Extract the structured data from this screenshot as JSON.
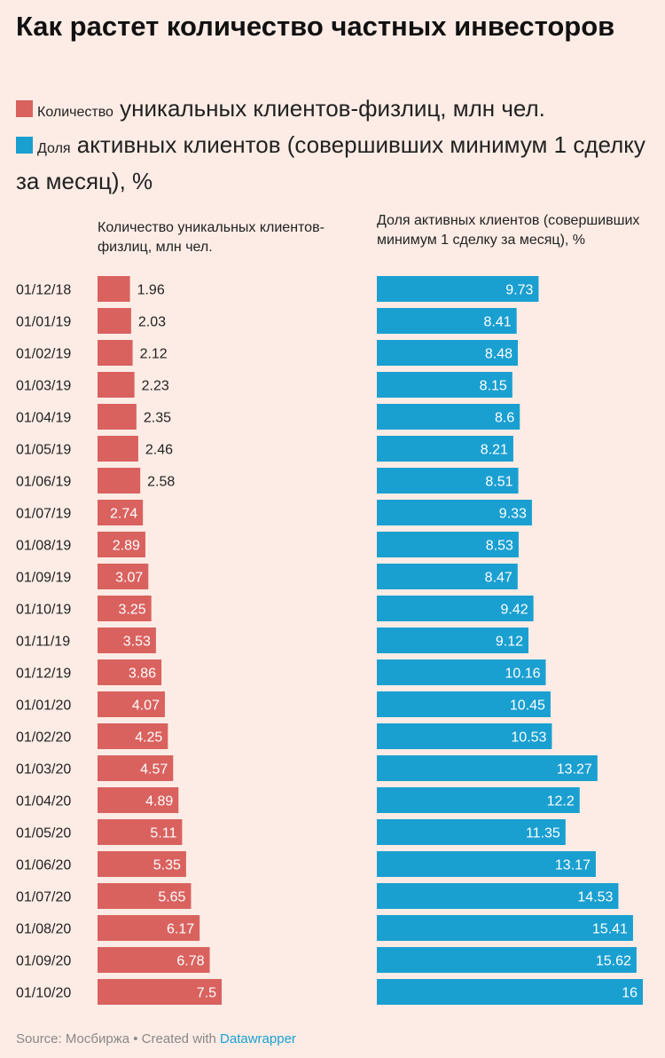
{
  "title": "Как растет количество частных инвесторов",
  "legend": [
    {
      "small": "Количество",
      "large": "уникальных клиентов-физлиц, млн чел.",
      "color": "#d9625f"
    },
    {
      "small": "Доля",
      "large": "активных клиентов (совершивших минимум 1 сделку за месяц), %",
      "color": "#1a9fd1"
    }
  ],
  "footer": {
    "source": "Source: Мосбиржа",
    "sep": " • ",
    "created": "Created with ",
    "brand": "Datawrapper"
  },
  "chart_data": {
    "type": "bar",
    "orientation": "horizontal",
    "categories": [
      "01/12/18",
      "01/01/19",
      "01/02/19",
      "01/03/19",
      "01/04/19",
      "01/05/19",
      "01/06/19",
      "01/07/19",
      "01/08/19",
      "01/09/19",
      "01/10/19",
      "01/11/19",
      "01/12/19",
      "01/01/20",
      "01/02/20",
      "01/03/20",
      "01/04/20",
      "01/05/20",
      "01/06/20",
      "01/07/20",
      "01/08/20",
      "01/09/20",
      "01/10/20"
    ],
    "series": [
      {
        "name": "Количество уникальных клиентов-физлиц, млн чел.",
        "color": "#d9625f",
        "values": [
          1.96,
          2.03,
          2.12,
          2.23,
          2.35,
          2.46,
          2.58,
          2.74,
          2.89,
          3.07,
          3.25,
          3.53,
          3.86,
          4.07,
          4.25,
          4.57,
          4.89,
          5.11,
          5.35,
          5.65,
          6.17,
          6.78,
          7.5
        ],
        "labels": [
          "1.96",
          "2.03",
          "2.12",
          "2.23",
          "2.35",
          "2.46",
          "2.58",
          "2.74",
          "2.89",
          "3.07",
          "3.25",
          "3.53",
          "3.86",
          "4.07",
          "4.25",
          "4.57",
          "4.89",
          "5.11",
          "5.35",
          "5.65",
          "6.17",
          "6.78",
          "7.5"
        ]
      },
      {
        "name": "Доля активных клиентов (совершивших минимум 1 сделку за месяц), %",
        "color": "#1a9fd1",
        "values": [
          9.73,
          8.41,
          8.48,
          8.15,
          8.6,
          8.21,
          8.51,
          9.33,
          8.53,
          8.47,
          9.42,
          9.12,
          10.16,
          10.45,
          10.53,
          13.27,
          12.2,
          11.35,
          13.17,
          14.53,
          15.41,
          15.62,
          16
        ],
        "labels": [
          "9.73",
          "8.41",
          "8.48",
          "8.15",
          "8.6",
          "8.21",
          "8.51",
          "9.33",
          "8.53",
          "8.47",
          "9.42",
          "9.12",
          "10.16",
          "10.45",
          "10.53",
          "13.27",
          "12.2",
          "11.35",
          "13.17",
          "14.53",
          "15.41",
          "15.62",
          "16"
        ]
      }
    ]
  }
}
